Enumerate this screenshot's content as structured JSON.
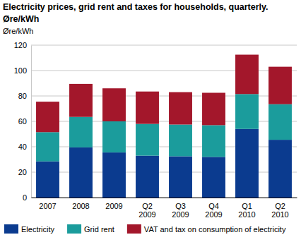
{
  "chart_data": {
    "type": "bar",
    "title": "Electricity prices, grid rent and taxes for households, quarterly. Øre/kWh",
    "y_label": "Øre/kWh",
    "categories": [
      "2007",
      "2008",
      "2009",
      "Q2 2009",
      "Q3 2009",
      "Q4 2009",
      "Q1 2010",
      "Q2 2010"
    ],
    "series": [
      {
        "name": "Electricity",
        "color": "#0b3b8f",
        "values": [
          28.5,
          39.5,
          35.5,
          33,
          32.5,
          32,
          54,
          45.5
        ]
      },
      {
        "name": "Grid rent",
        "color": "#1b9c9c",
        "values": [
          23,
          24,
          24.5,
          25,
          25,
          25,
          27.5,
          28
        ]
      },
      {
        "name": "VAT and tax on consumption of electricity",
        "color": "#a3172b",
        "values": [
          24,
          26,
          26,
          25.5,
          25.5,
          25.5,
          31,
          29.5
        ]
      }
    ],
    "stacked": true,
    "ylim": [
      0,
      120
    ],
    "yticks": [
      0,
      20,
      40,
      60,
      80,
      100,
      120
    ],
    "grid": true,
    "legend": "bottom"
  }
}
